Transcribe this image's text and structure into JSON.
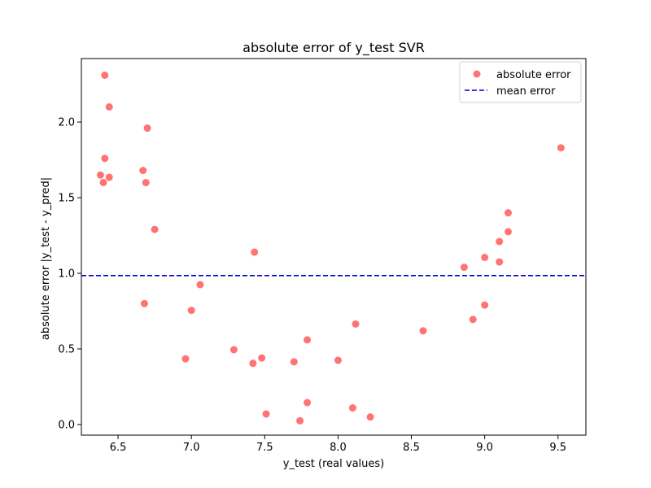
{
  "chart_data": {
    "type": "scatter",
    "title": "absolute error of y_test SVR",
    "xlabel": "y_test (real values)",
    "ylabel": "absolute error |y_test - y_pred|",
    "xlim": [
      6.25,
      9.69
    ],
    "ylim": [
      -0.07,
      2.42
    ],
    "xticks": [
      6.5,
      7.0,
      7.5,
      8.0,
      8.5,
      9.0,
      9.5
    ],
    "xtick_labels": [
      "6.5",
      "7.0",
      "7.5",
      "8.0",
      "8.5",
      "9.0",
      "9.5"
    ],
    "yticks": [
      0.0,
      0.5,
      1.0,
      1.5,
      2.0
    ],
    "ytick_labels": [
      "0.0",
      "0.5",
      "1.0",
      "1.5",
      "2.0"
    ],
    "grid": false,
    "legend_position": "top-right",
    "series": [
      {
        "name": "absolute error",
        "kind": "scatter",
        "color": "#ff0000",
        "alpha": 0.55,
        "points": [
          [
            6.41,
            2.31
          ],
          [
            6.44,
            2.1
          ],
          [
            6.41,
            1.76
          ],
          [
            6.38,
            1.65
          ],
          [
            6.44,
            1.635
          ],
          [
            6.4,
            1.6
          ],
          [
            6.7,
            1.96
          ],
          [
            6.67,
            1.68
          ],
          [
            6.69,
            1.6
          ],
          [
            6.75,
            1.29
          ],
          [
            6.68,
            0.8
          ],
          [
            6.96,
            0.435
          ],
          [
            7.0,
            0.755
          ],
          [
            7.06,
            0.925
          ],
          [
            7.29,
            0.495
          ],
          [
            7.43,
            1.14
          ],
          [
            7.42,
            0.405
          ],
          [
            7.48,
            0.44
          ],
          [
            7.51,
            0.07
          ],
          [
            7.7,
            0.415
          ],
          [
            7.74,
            0.025
          ],
          [
            7.79,
            0.56
          ],
          [
            7.79,
            0.145
          ],
          [
            8.0,
            0.425
          ],
          [
            8.1,
            0.11
          ],
          [
            8.12,
            0.665
          ],
          [
            8.22,
            0.05
          ],
          [
            8.58,
            0.62
          ],
          [
            8.86,
            1.04
          ],
          [
            8.92,
            0.695
          ],
          [
            9.0,
            1.105
          ],
          [
            9.0,
            0.79
          ],
          [
            9.1,
            1.21
          ],
          [
            9.1,
            1.075
          ],
          [
            9.16,
            1.4
          ],
          [
            9.16,
            1.275
          ],
          [
            9.52,
            1.83
          ]
        ]
      },
      {
        "name": "mean error",
        "kind": "hline",
        "color": "#0000cc",
        "dash": "dashed",
        "y": 0.985
      }
    ]
  }
}
